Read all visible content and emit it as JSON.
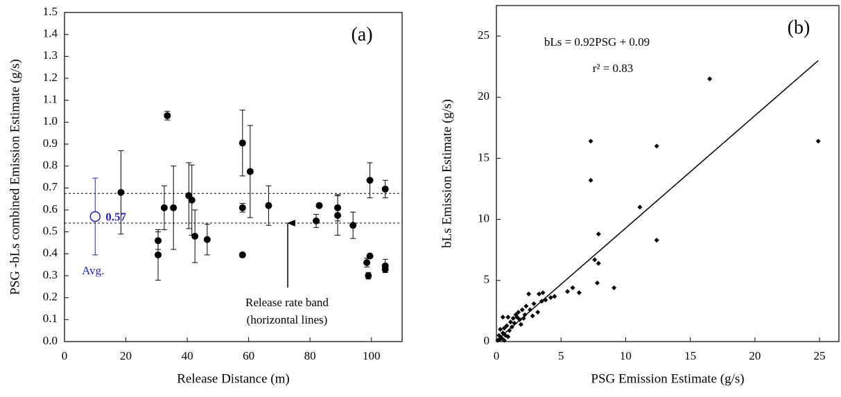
{
  "chart_data": [
    {
      "type": "scatter",
      "panel_label": "(a)",
      "x_label": "Release Distance (m)",
      "y_label": "PSG -bLs combined Emission Estimate (g/s)",
      "xlim": [
        0,
        110
      ],
      "xticks": [
        0,
        20,
        40,
        60,
        80,
        100
      ],
      "ylim": [
        0,
        1.5
      ],
      "yticks": [
        {
          "value": 0,
          "label": "0.0"
        },
        0.1,
        0.2,
        0.3,
        0.4,
        0.5,
        0.6,
        0.7,
        0.8,
        0.9,
        {
          "value": 1,
          "label": "1.0"
        },
        1.1,
        1.2,
        1.3,
        1.4,
        1.5
      ],
      "color": "#000000",
      "x": [
        18.4,
        30.5,
        30.5,
        32.5,
        33.5,
        35.5,
        40.5,
        41.5,
        42.5,
        46.5,
        58,
        58,
        58,
        60.5,
        66.5,
        82,
        83,
        89,
        89,
        94,
        99.5,
        98.5,
        99.5,
        99,
        104.5,
        104.5,
        104.5
      ],
      "values": [
        0.68,
        0.46,
        0.395,
        0.61,
        1.03,
        0.61,
        0.665,
        0.645,
        0.48,
        0.465,
        0.905,
        0.61,
        0.395,
        0.775,
        0.62,
        0.55,
        0.62,
        0.61,
        0.575,
        0.53,
        0.735,
        0.36,
        0.39,
        0.3,
        0.695,
        0.345,
        0.33
      ],
      "errors": [
        0.19,
        0.04,
        0.115,
        0.1,
        0.02,
        0.19,
        0.15,
        0.16,
        0.12,
        0.07,
        0.15,
        0.02,
        null,
        0.21,
        0.09,
        0.03,
        null,
        0.06,
        0.09,
        0.06,
        0.08,
        0.02,
        null,
        0.015,
        0.04,
        0.03,
        0.015
      ],
      "hlines": [
        0.675,
        0.54
      ],
      "average": {
        "x": 10,
        "value": 0.57,
        "error": 0.175,
        "label": "Avg.",
        "color": "#1f1fcc"
      },
      "annotation": [
        "Release rate band",
        "(horizontal lines)"
      ]
    },
    {
      "type": "scatter",
      "panel_label": "(b)",
      "marker": "diamond",
      "x_label": "PSG Emission Estimate (g/s)",
      "y_label": "bLs Emission Estimate (g/s)",
      "xlim": [
        0,
        26.5
      ],
      "xticks": [
        0,
        5,
        10,
        15,
        20,
        25
      ],
      "ylim": [
        0,
        27.5
      ],
      "yticks": [
        0,
        5,
        10,
        15,
        20,
        25
      ],
      "color": "#000000",
      "x": [
        16.5,
        24.9,
        7.3,
        12.4,
        7.3,
        11.1,
        7.9,
        12.4,
        7.6,
        7.9,
        7.8,
        9.1,
        5.9,
        6.4,
        5.5,
        4.2,
        3.6,
        3.3,
        2.5,
        3.8,
        2.9,
        2.3,
        2.6,
        3.2,
        2,
        1.7,
        1.5,
        1.3,
        0.9,
        0.5,
        1.6,
        1.1,
        0.8,
        0.6,
        0.3,
        0.2,
        0.4,
        0.1,
        0.7,
        1,
        1.8,
        2.2,
        2.8,
        4.5,
        0.5,
        0.3,
        0.9,
        1.2,
        1.4,
        0.6,
        2.1,
        3.5,
        1.9
      ],
      "values": [
        21.5,
        16.4,
        16.4,
        16,
        13.2,
        11,
        8.8,
        8.3,
        6.7,
        6.4,
        4.8,
        4.4,
        4.4,
        4,
        4.1,
        3.6,
        4,
        3.9,
        3.9,
        3.4,
        3.1,
        2.9,
        2.6,
        2.4,
        2.6,
        2.4,
        2.2,
        1.9,
        2,
        2,
        2,
        1.6,
        1.3,
        1.1,
        1,
        0.5,
        0.3,
        0.1,
        0.5,
        0.9,
        1.8,
        2.2,
        2.1,
        3.7,
        0.7,
        0.2,
        0.4,
        1.2,
        1.5,
        0.1,
        1.9,
        3.3,
        1.4
      ],
      "fit": {
        "slope": 0.92,
        "intercept": 0.09
      },
      "equation": "bLs = 0.92PSG + 0.09",
      "r_squared": "r² = 0.83"
    }
  ]
}
